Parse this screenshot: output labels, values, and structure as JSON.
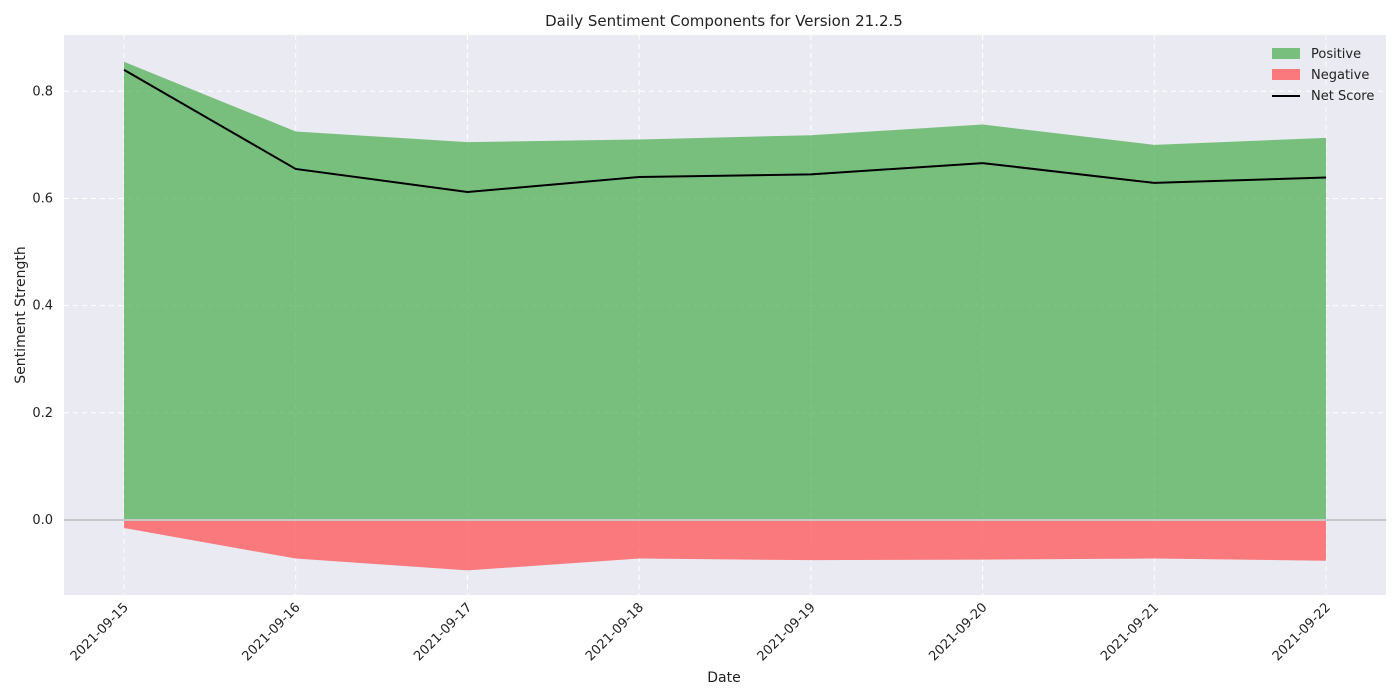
{
  "chart_data": {
    "type": "area",
    "title": "Daily Sentiment Components for Version 21.2.5",
    "xlabel": "Date",
    "ylabel": "Sentiment Strength",
    "x": [
      "2021-09-15",
      "2021-09-16",
      "2021-09-17",
      "2021-09-18",
      "2021-09-19",
      "2021-09-20",
      "2021-09-21",
      "2021-09-22"
    ],
    "ylim": [
      -0.14,
      0.905
    ],
    "yticks": [
      "0.0",
      "0.2",
      "0.4",
      "0.6",
      "0.8"
    ],
    "ytick_values": [
      0.0,
      0.2,
      0.4,
      0.6,
      0.8
    ],
    "series": [
      {
        "name": "Positive",
        "kind": "area",
        "color": "#4caf50",
        "values": [
          0.855,
          0.725,
          0.705,
          0.71,
          0.718,
          0.738,
          0.7,
          0.713
        ]
      },
      {
        "name": "Negative",
        "kind": "area",
        "color": "#ff4d4d",
        "values": [
          -0.015,
          -0.072,
          -0.094,
          -0.072,
          -0.075,
          -0.074,
          -0.072,
          -0.076
        ]
      },
      {
        "name": "Net Score",
        "kind": "line",
        "color": "#000000",
        "values": [
          0.84,
          0.655,
          0.612,
          0.64,
          0.645,
          0.666,
          0.629,
          0.639
        ]
      }
    ],
    "grid": true,
    "legend_position": "top-right",
    "background_color": "#eaeaf2"
  }
}
